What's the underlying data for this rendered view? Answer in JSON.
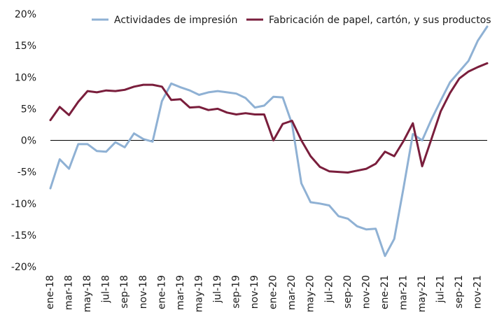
{
  "chart_data": {
    "type": "line",
    "title": "",
    "xlabel": "",
    "ylabel": "",
    "ylim": [
      -20,
      20
    ],
    "yticks": [
      20,
      15,
      10,
      5,
      0,
      -5,
      -10,
      -15,
      -20
    ],
    "ytick_labels": [
      "20%",
      "15%",
      "10%",
      "5%",
      "0%",
      "-5%",
      "-10%",
      "-15%",
      "-20%"
    ],
    "x": [
      "ene-18",
      "feb-18",
      "mar-18",
      "abr-18",
      "may-18",
      "jun-18",
      "jul-18",
      "ago-18",
      "sep-18",
      "oct-18",
      "nov-18",
      "dic-18",
      "ene-19",
      "feb-19",
      "mar-19",
      "abr-19",
      "may-19",
      "jun-19",
      "jul-19",
      "ago-19",
      "sep-19",
      "oct-19",
      "nov-19",
      "dic-19",
      "ene-20",
      "feb-20",
      "mar-20",
      "abr-20",
      "may-20",
      "jun-20",
      "jul-20",
      "ago-20",
      "sep-20",
      "oct-20",
      "nov-20",
      "dic-20",
      "ene-21",
      "feb-21",
      "mar-21",
      "abr-21",
      "may-21",
      "jun-21",
      "jul-21",
      "ago-21",
      "sep-21",
      "oct-21",
      "nov-21",
      "dic-21"
    ],
    "xtick_labels": [
      "ene-18",
      "mar-18",
      "may-18",
      "jul-18",
      "sep-18",
      "nov-18",
      "ene-19",
      "mar-19",
      "may-19",
      "jul-19",
      "sep-19",
      "nov-19",
      "ene-20",
      "mar-20",
      "may-20",
      "jul-20",
      "sep-20",
      "nov-20",
      "ene-21",
      "mar-21",
      "may-21",
      "jul-21",
      "sep-21",
      "nov-21"
    ],
    "series": [
      {
        "name": "Actividades de impresión",
        "color": "#8fb1d4",
        "values": [
          -7.6,
          -3.0,
          -4.5,
          -0.6,
          -0.6,
          -1.7,
          -1.8,
          -0.3,
          -1.1,
          1.1,
          0.2,
          -0.2,
          6.2,
          9.0,
          8.4,
          7.9,
          7.2,
          7.6,
          7.8,
          7.6,
          7.4,
          6.7,
          5.2,
          5.5,
          6.9,
          6.8,
          2.6,
          -6.8,
          -9.8,
          -10.0,
          -10.3,
          -12.0,
          -12.4,
          -13.6,
          -14.1,
          -14.0,
          -18.3,
          -15.6,
          -7.5,
          1.0,
          0.0,
          3.3,
          6.3,
          9.2,
          10.9,
          12.6,
          15.8,
          18.0
        ]
      },
      {
        "name": "Fabricación de papel, cartón, y sus productos",
        "color": "#7a1e3c",
        "values": [
          3.2,
          5.3,
          4.0,
          6.1,
          7.8,
          7.6,
          7.9,
          7.8,
          8.0,
          8.5,
          8.8,
          8.8,
          8.5,
          6.4,
          6.5,
          5.2,
          5.3,
          4.8,
          5.0,
          4.4,
          4.1,
          4.3,
          4.1,
          4.1,
          0.0,
          2.6,
          3.1,
          0.0,
          -2.5,
          -4.2,
          -4.9,
          -5.0,
          -5.1,
          -4.8,
          -4.5,
          -3.7,
          -1.8,
          -2.5,
          -0.1,
          2.7,
          -4.1,
          0.2,
          4.6,
          7.5,
          9.8,
          10.9,
          11.6,
          12.2
        ]
      }
    ],
    "legend_position": "top"
  }
}
